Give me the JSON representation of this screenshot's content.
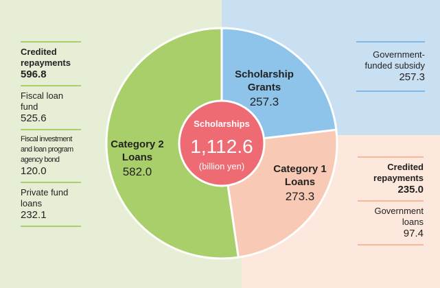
{
  "chart_data": {
    "type": "pie",
    "categories": [
      "Scholarship Grants",
      "Category 1 Loans",
      "Category 2 Loans"
    ],
    "values": [
      257.3,
      273.3,
      582.0
    ],
    "value_labels": [
      "257.3",
      "273.3",
      "582.0"
    ],
    "colors": [
      "#8ec3ea",
      "#f8c9b4",
      "#a9cf6a"
    ],
    "center": {
      "title": "Scholarships",
      "total": {
        "value": 1112.6,
        "label": "1,112.6"
      },
      "unit": "(billion yen)"
    },
    "annotations": {
      "left": [
        {
          "name": "Credited repayments",
          "value": "596.8"
        },
        {
          "name": "Fiscal loan fund",
          "value": "525.6"
        },
        {
          "name": "Fiscal investment and loan program agency bond",
          "value": "120.0"
        },
        {
          "name": "Private fund loans",
          "value": "232.1"
        }
      ],
      "top_right": [
        {
          "name": "Government-funded subsidy",
          "value": "257.3"
        }
      ],
      "bottom_right": [
        {
          "name": "Credited repayments",
          "value": "235.0"
        },
        {
          "name": "Government loans",
          "value": "97.4"
        }
      ]
    }
  }
}
